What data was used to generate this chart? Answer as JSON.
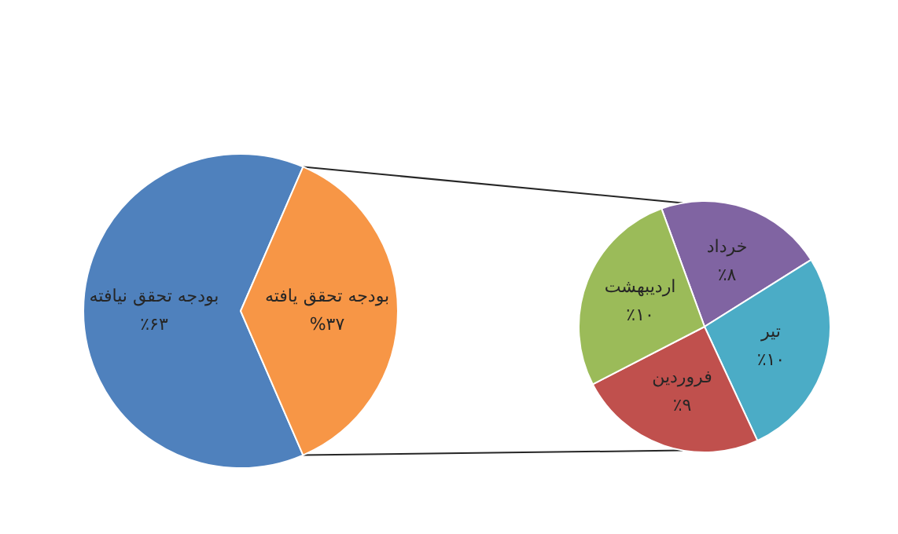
{
  "chart_data": [
    {
      "type": "pie",
      "categories": [
        "بودجه تحقق نیافته",
        "بودجه تحقق یافته"
      ],
      "values": [
        63,
        37
      ],
      "colors": [
        "#4f81bd",
        "#f79646"
      ],
      "value_labels": [
        "٪۶۳",
        "%۳۷"
      ]
    },
    {
      "type": "pie",
      "categories": [
        "خرداد",
        "تیر",
        "فروردین",
        "اردیبهشت"
      ],
      "values": [
        8,
        10,
        9,
        10
      ],
      "colors": [
        "#8064a2",
        "#4bacc6",
        "#c0504d",
        "#9bbb59"
      ],
      "value_labels": [
        "٪۸",
        "٪۱۰",
        "٪۹",
        "٪۱۰"
      ]
    }
  ]
}
